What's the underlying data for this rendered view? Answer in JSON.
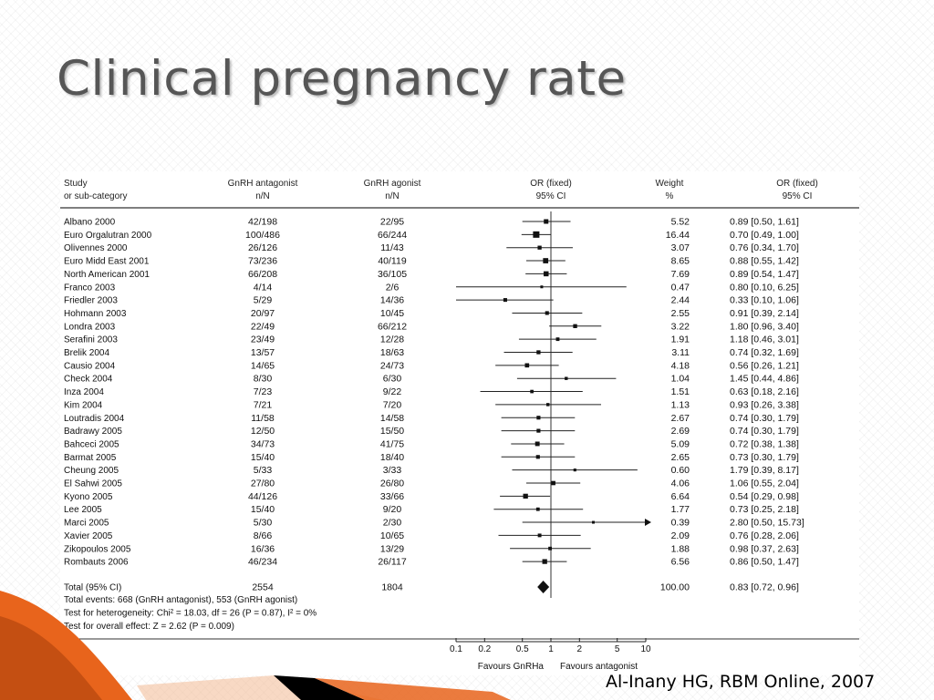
{
  "slide": {
    "title": "Clinical pregnancy rate",
    "citation": "Al-Inany  HG, RBM Online, 2007"
  },
  "chart_data": {
    "type": "forest",
    "columns": {
      "study": [
        "Study",
        "or sub-category"
      ],
      "antagonist": [
        "GnRH antagonist",
        "n/N"
      ],
      "agonist": [
        "GnRH agonist",
        "n/N"
      ],
      "plot": [
        "OR (fixed)",
        "95% CI"
      ],
      "weight": [
        "Weight",
        "%"
      ],
      "or": [
        "OR (fixed)",
        "95% CI"
      ]
    },
    "rows": [
      {
        "study": "Albano 2000",
        "antagonist": "42/198",
        "agonist": "22/95",
        "weight": "5.52",
        "or_text": "0.89 [0.50, 1.61]",
        "or": 0.89,
        "lo": 0.5,
        "hi": 1.61
      },
      {
        "study": "Euro Orgalutran 2000",
        "antagonist": "100/486",
        "agonist": "66/244",
        "weight": "16.44",
        "or_text": "0.70 [0.49, 1.00]",
        "or": 0.7,
        "lo": 0.49,
        "hi": 1.0
      },
      {
        "study": "Olivennes 2000",
        "antagonist": "26/126",
        "agonist": "11/43",
        "weight": "3.07",
        "or_text": "0.76 [0.34, 1.70]",
        "or": 0.76,
        "lo": 0.34,
        "hi": 1.7
      },
      {
        "study": "Euro Midd East 2001",
        "antagonist": "73/236",
        "agonist": "40/119",
        "weight": "8.65",
        "or_text": "0.88 [0.55, 1.42]",
        "or": 0.88,
        "lo": 0.55,
        "hi": 1.42
      },
      {
        "study": "North American 2001",
        "antagonist": "66/208",
        "agonist": "36/105",
        "weight": "7.69",
        "or_text": "0.89 [0.54, 1.47]",
        "or": 0.89,
        "lo": 0.54,
        "hi": 1.47
      },
      {
        "study": "Franco 2003",
        "antagonist": "4/14",
        "agonist": "2/6",
        "weight": "0.47",
        "or_text": "0.80 [0.10, 6.25]",
        "or": 0.8,
        "lo": 0.1,
        "hi": 6.25
      },
      {
        "study": "Friedler 2003",
        "antagonist": "5/29",
        "agonist": "14/36",
        "weight": "2.44",
        "or_text": "0.33 [0.10, 1.06]",
        "or": 0.33,
        "lo": 0.1,
        "hi": 1.06
      },
      {
        "study": "Hohmann 2003",
        "antagonist": "20/97",
        "agonist": "10/45",
        "weight": "2.55",
        "or_text": "0.91 [0.39, 2.14]",
        "or": 0.91,
        "lo": 0.39,
        "hi": 2.14
      },
      {
        "study": "Londra 2003",
        "antagonist": "22/49",
        "agonist": "66/212",
        "weight": "3.22",
        "or_text": "1.80 [0.96, 3.40]",
        "or": 1.8,
        "lo": 0.96,
        "hi": 3.4
      },
      {
        "study": "Serafini 2003",
        "antagonist": "23/49",
        "agonist": "12/28",
        "weight": "1.91",
        "or_text": "1.18 [0.46, 3.01]",
        "or": 1.18,
        "lo": 0.46,
        "hi": 3.01
      },
      {
        "study": "Brelik 2004",
        "antagonist": "13/57",
        "agonist": "18/63",
        "weight": "3.11",
        "or_text": "0.74 [0.32, 1.69]",
        "or": 0.74,
        "lo": 0.32,
        "hi": 1.69
      },
      {
        "study": "Causio 2004",
        "antagonist": "14/65",
        "agonist": "24/73",
        "weight": "4.18",
        "or_text": "0.56 [0.26, 1.21]",
        "or": 0.56,
        "lo": 0.26,
        "hi": 1.21
      },
      {
        "study": "Check 2004",
        "antagonist": "8/30",
        "agonist": "6/30",
        "weight": "1.04",
        "or_text": "1.45 [0.44, 4.86]",
        "or": 1.45,
        "lo": 0.44,
        "hi": 4.86
      },
      {
        "study": "Inza 2004",
        "antagonist": "7/23",
        "agonist": "9/22",
        "weight": "1.51",
        "or_text": "0.63 [0.18, 2.16]",
        "or": 0.63,
        "lo": 0.18,
        "hi": 2.16
      },
      {
        "study": "Kim 2004",
        "antagonist": "7/21",
        "agonist": "7/20",
        "weight": "1.13",
        "or_text": "0.93 [0.26, 3.38]",
        "or": 0.93,
        "lo": 0.26,
        "hi": 3.38
      },
      {
        "study": "Loutradis 2004",
        "antagonist": "11/58",
        "agonist": "14/58",
        "weight": "2.67",
        "or_text": "0.74 [0.30, 1.79]",
        "or": 0.74,
        "lo": 0.3,
        "hi": 1.79
      },
      {
        "study": "Badrawy 2005",
        "antagonist": "12/50",
        "agonist": "15/50",
        "weight": "2.69",
        "or_text": "0.74 [0.30, 1.79]",
        "or": 0.74,
        "lo": 0.3,
        "hi": 1.79
      },
      {
        "study": "Bahceci 2005",
        "antagonist": "34/73",
        "agonist": "41/75",
        "weight": "5.09",
        "or_text": "0.72 [0.38, 1.38]",
        "or": 0.72,
        "lo": 0.38,
        "hi": 1.38
      },
      {
        "study": "Barmat 2005",
        "antagonist": "15/40",
        "agonist": "18/40",
        "weight": "2.65",
        "or_text": "0.73 [0.30, 1.79]",
        "or": 0.73,
        "lo": 0.3,
        "hi": 1.79
      },
      {
        "study": "Cheung 2005",
        "antagonist": "5/33",
        "agonist": "3/33",
        "weight": "0.60",
        "or_text": "1.79 [0.39, 8.17]",
        "or": 1.79,
        "lo": 0.39,
        "hi": 8.17
      },
      {
        "study": "El Sahwi 2005",
        "antagonist": "27/80",
        "agonist": "26/80",
        "weight": "4.06",
        "or_text": "1.06 [0.55, 2.04]",
        "or": 1.06,
        "lo": 0.55,
        "hi": 2.04
      },
      {
        "study": "Kyono 2005",
        "antagonist": "44/126",
        "agonist": "33/66",
        "weight": "6.64",
        "or_text": "0.54 [0.29, 0.98]",
        "or": 0.54,
        "lo": 0.29,
        "hi": 0.98
      },
      {
        "study": "Lee 2005",
        "antagonist": "15/40",
        "agonist": "9/20",
        "weight": "1.77",
        "or_text": "0.73 [0.25, 2.18]",
        "or": 0.73,
        "lo": 0.25,
        "hi": 2.18
      },
      {
        "study": "Marci 2005",
        "antagonist": "5/30",
        "agonist": "2/30",
        "weight": "0.39",
        "or_text": "2.80 [0.50, 15.73]",
        "or": 2.8,
        "lo": 0.5,
        "hi": 15.73
      },
      {
        "study": "Xavier 2005",
        "antagonist": "8/66",
        "agonist": "10/65",
        "weight": "2.09",
        "or_text": "0.76 [0.28, 2.06]",
        "or": 0.76,
        "lo": 0.28,
        "hi": 2.06
      },
      {
        "study": "Zikopoulos 2005",
        "antagonist": "16/36",
        "agonist": "13/29",
        "weight": "1.88",
        "or_text": "0.98 [0.37, 2.63]",
        "or": 0.98,
        "lo": 0.37,
        "hi": 2.63
      },
      {
        "study": "Rombauts 2006",
        "antagonist": "46/234",
        "agonist": "26/117",
        "weight": "6.56",
        "or_text": "0.86 [0.50, 1.47]",
        "or": 0.86,
        "lo": 0.5,
        "hi": 1.47
      }
    ],
    "total": {
      "study": "Total (95% CI)",
      "antagonist": "2554",
      "agonist": "1804",
      "weight": "100.00",
      "or_text": "0.83 [0.72, 0.96]",
      "or": 0.83,
      "lo": 0.72,
      "hi": 0.96
    },
    "footnotes": [
      "Total events: 668 (GnRH antagonist), 553 (GnRH agonist)",
      "Test for heterogeneity: Chi² = 18.03, df = 26 (P = 0.87), I² = 0%",
      "Test for overall effect: Z = 2.62 (P = 0.009)"
    ],
    "x_scale": "log",
    "xlim": [
      0.1,
      10
    ],
    "x_ticks": [
      0.1,
      0.2,
      0.5,
      1,
      2,
      5,
      10
    ],
    "x_tick_labels": [
      "0.1",
      "0.2",
      "0.5",
      "1",
      "2",
      "5",
      "10"
    ],
    "x_footer_left": "Favours GnRHa",
    "x_footer_right": "Favours antagonist"
  }
}
